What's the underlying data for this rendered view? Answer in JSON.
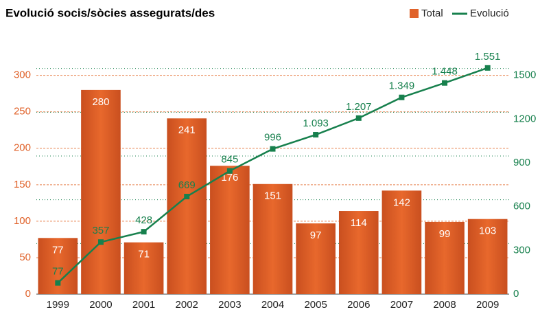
{
  "chart_data": {
    "type": "bar",
    "title": "Evolució socis/sòcies assegurats/des",
    "categories": [
      "1999",
      "2000",
      "2001",
      "2002",
      "2003",
      "2004",
      "2005",
      "2006",
      "2007",
      "2008",
      "2009"
    ],
    "series": [
      {
        "name": "Total",
        "type": "bar",
        "color": "#e0622a",
        "values": [
          77,
          280,
          71,
          241,
          176,
          151,
          97,
          114,
          142,
          99,
          103
        ]
      },
      {
        "name": "Evolució",
        "type": "line",
        "color": "#17804d",
        "axis": "y2",
        "values": [
          77,
          357,
          428,
          669,
          845,
          996,
          1093,
          1207,
          1349,
          1448,
          1551
        ],
        "value_labels": [
          "77",
          "357",
          "428",
          "669",
          "845",
          "996",
          "1.093",
          "1.207",
          "1.349",
          "1.448",
          "1.551"
        ]
      }
    ],
    "ylim": [
      0,
      360
    ],
    "yticks": [
      0,
      50,
      100,
      150,
      200,
      250,
      300
    ],
    "y2lim": [
      0,
      1800
    ],
    "y2ticks": [
      0,
      300,
      600,
      900,
      1200,
      1500
    ],
    "grid": true,
    "legend": "top-right"
  }
}
